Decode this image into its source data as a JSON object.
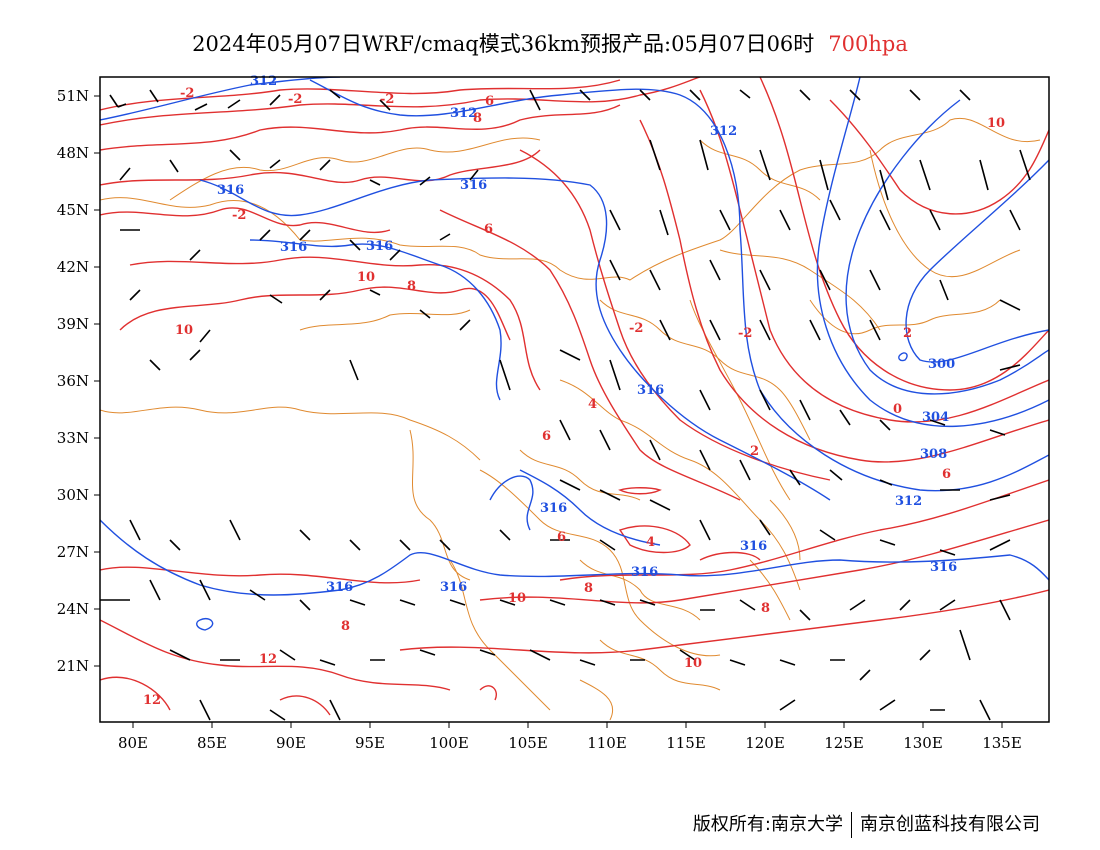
{
  "header": {
    "title": "2024年05月07日WRF/cmaq模式36km预报产品:05月07日06时",
    "level": "700hpa"
  },
  "colors": {
    "height_contour": "#2050e0",
    "temperature_contour": "#e03030",
    "border": "#e08a30",
    "wind_barb": "#000000"
  },
  "axes": {
    "x_ticks": [
      "80E",
      "85E",
      "90E",
      "95E",
      "100E",
      "105E",
      "110E",
      "115E",
      "120E",
      "125E",
      "130E",
      "135E"
    ],
    "y_ticks": [
      "51N",
      "48N",
      "45N",
      "42N",
      "39N",
      "36N",
      "33N",
      "30N",
      "27N",
      "24N",
      "21N"
    ]
  },
  "contour_labels": {
    "height": [
      "312",
      "312",
      "312",
      "316",
      "316",
      "316",
      "316",
      "316",
      "316",
      "316",
      "316",
      "316",
      "316",
      "300",
      "304",
      "308",
      "312",
      "316"
    ],
    "temperature": [
      "-2",
      "-2",
      "-2",
      "-2",
      "-2",
      "-2",
      "0",
      "2",
      "2",
      "4",
      "4",
      "6",
      "6",
      "6",
      "6",
      "6",
      "8",
      "8",
      "8",
      "8",
      "8",
      "10",
      "10",
      "10",
      "10",
      "10",
      "12",
      "12"
    ]
  },
  "footer": {
    "copyright": "版权所有:南京大学",
    "company": "南京创蓝科技有限公司"
  }
}
